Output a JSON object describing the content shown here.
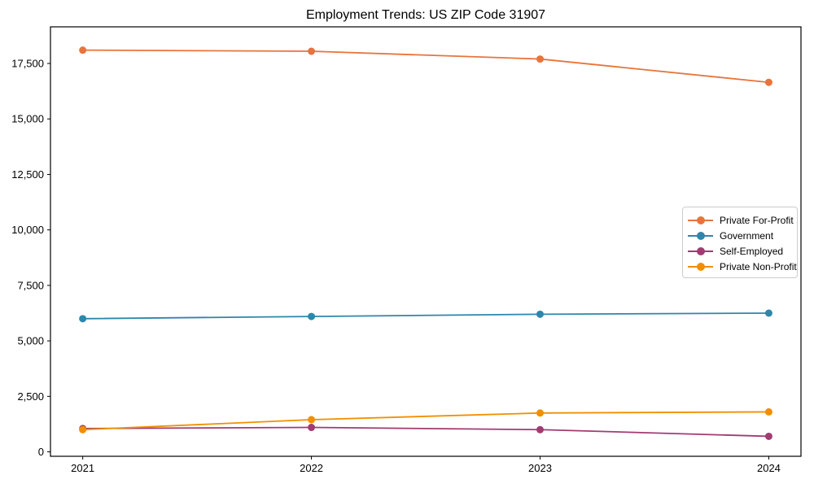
{
  "chart_data": {
    "type": "line",
    "title": "Employment Trends: US ZIP Code 31907",
    "xlabel": "",
    "ylabel": "",
    "categories": [
      "2021",
      "2022",
      "2023",
      "2024"
    ],
    "series": [
      {
        "name": "Private For-Profit",
        "color": "#E8743B",
        "values": [
          18100,
          18050,
          17700,
          16650
        ]
      },
      {
        "name": "Government",
        "color": "#2E86AB",
        "values": [
          6000,
          6100,
          6200,
          6250
        ]
      },
      {
        "name": "Self-Employed",
        "color": "#A23B72",
        "values": [
          1050,
          1100,
          1000,
          700
        ]
      },
      {
        "name": "Private Non-Profit",
        "color": "#F18F01",
        "values": [
          1000,
          1450,
          1750,
          1800
        ]
      }
    ],
    "yticks": [
      {
        "value": 0,
        "label": "0"
      },
      {
        "value": 2500,
        "label": "2,500"
      },
      {
        "value": 5000,
        "label": "5,000"
      },
      {
        "value": 7500,
        "label": "7,500"
      },
      {
        "value": 10000,
        "label": "10,000"
      },
      {
        "value": 12500,
        "label": "12,500"
      },
      {
        "value": 15000,
        "label": "15,000"
      },
      {
        "value": 17500,
        "label": "17,500"
      }
    ],
    "ylim": [
      -200,
      19150
    ],
    "grid": false,
    "legend_position": "center-right",
    "axis_color": "#000000",
    "marker": "circle"
  }
}
